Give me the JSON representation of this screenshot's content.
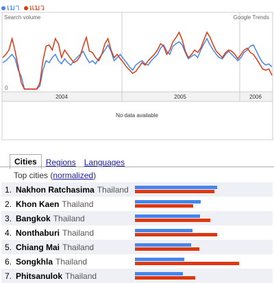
{
  "legend": [
    {
      "label": "เมา",
      "color": "#4684ee"
    },
    {
      "label": "แมว",
      "color": "#dc3912"
    }
  ],
  "chart_data": {
    "type": "line",
    "ylabel": "Search volume",
    "source_label": "Google Trends",
    "y_zero_label": "0",
    "x_year_labels": [
      "2004",
      "2005",
      "2006"
    ],
    "no_data_text": "No data available",
    "series": [
      {
        "name": "เมา",
        "color": "#4684ee",
        "values": [
          0.42,
          0.45,
          0.5,
          0.55,
          0.48,
          0.3,
          0.2,
          0.0,
          0.0,
          0.0,
          0.0,
          0.0,
          0.05,
          0.3,
          0.45,
          0.42,
          0.5,
          0.55,
          0.45,
          0.4,
          0.48,
          0.42,
          0.38,
          0.45,
          0.5,
          0.55,
          0.6,
          0.5,
          0.42,
          0.45,
          0.4,
          0.48,
          0.55,
          0.62,
          0.7,
          0.6,
          0.45,
          0.5,
          0.55,
          0.48,
          0.42,
          0.35,
          0.3,
          0.38,
          0.42,
          0.45,
          0.4,
          0.38,
          0.45,
          0.5,
          0.55,
          0.65,
          0.7,
          0.6,
          0.55,
          0.68,
          0.72,
          0.75,
          0.7,
          0.58,
          0.48,
          0.52,
          0.55,
          0.5,
          0.62,
          0.72,
          0.8,
          0.7,
          0.62,
          0.55,
          0.5,
          0.48,
          0.55,
          0.6,
          0.55,
          0.5,
          0.45,
          0.5,
          0.58,
          0.62,
          0.68,
          0.7,
          0.6,
          0.5,
          0.42,
          0.38,
          0.4,
          0.35
        ]
      },
      {
        "name": "แมว",
        "color": "#dc3912",
        "values": [
          0.5,
          0.55,
          0.62,
          0.8,
          0.6,
          0.35,
          0.1,
          0.0,
          0.0,
          0.0,
          0.0,
          0.0,
          0.1,
          0.45,
          0.68,
          0.7,
          0.62,
          0.8,
          0.72,
          0.5,
          0.62,
          0.55,
          0.48,
          0.42,
          0.45,
          0.52,
          0.68,
          0.82,
          0.6,
          0.58,
          0.5,
          0.45,
          0.55,
          0.72,
          0.8,
          0.62,
          0.5,
          0.55,
          0.48,
          0.42,
          0.35,
          0.3,
          0.25,
          0.28,
          0.35,
          0.42,
          0.38,
          0.45,
          0.5,
          0.55,
          0.62,
          0.72,
          0.68,
          0.55,
          0.62,
          0.75,
          0.82,
          0.9,
          0.78,
          0.6,
          0.5,
          0.55,
          0.62,
          0.58,
          0.65,
          0.78,
          0.9,
          0.82,
          0.7,
          0.6,
          0.55,
          0.5,
          0.58,
          0.62,
          0.6,
          0.55,
          0.48,
          0.55,
          0.62,
          0.65,
          0.58,
          0.55,
          0.48,
          0.4,
          0.32,
          0.3,
          0.32,
          0.22
        ]
      }
    ]
  },
  "tabs": [
    {
      "label": "Cities",
      "active": true
    },
    {
      "label": "Regions",
      "active": false
    },
    {
      "label": "Languages",
      "active": false
    }
  ],
  "top_cities_prefix": "Top cities (",
  "top_cities_link": "normalized",
  "top_cities_suffix": ")",
  "cities": [
    {
      "rank": "1.",
      "city": "Nakhon Ratchasima",
      "country": "Thailand",
      "blue": 1.0,
      "red": 0.97
    },
    {
      "rank": "2.",
      "city": "Khon Kaen",
      "country": "Thailand",
      "blue": 0.8,
      "red": 0.71
    },
    {
      "rank": "3.",
      "city": "Bangkok",
      "country": "Thailand",
      "blue": 0.79,
      "red": 0.92
    },
    {
      "rank": "4.",
      "city": "Nonthaburi",
      "country": "Thailand",
      "blue": 0.7,
      "red": 1.0
    },
    {
      "rank": "5.",
      "city": "Chiang Mai",
      "country": "Thailand",
      "blue": 0.68,
      "red": 0.78
    },
    {
      "rank": "6.",
      "city": "Songkhla",
      "country": "Thailand",
      "blue": 0.6,
      "red": 1.27
    },
    {
      "rank": "7.",
      "city": "Phitsanulok",
      "country": "Thailand",
      "blue": 0.58,
      "red": 0.73
    }
  ]
}
